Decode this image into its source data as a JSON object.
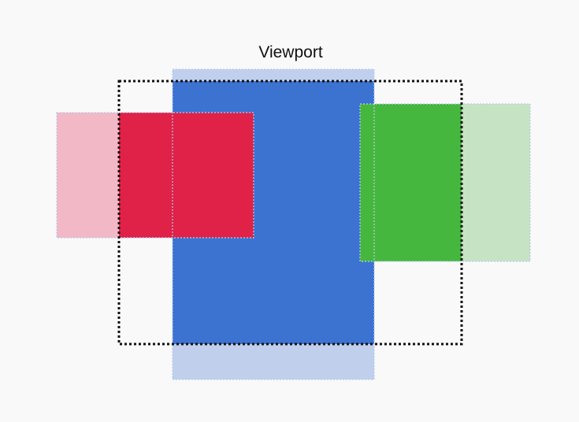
{
  "viewport": {
    "label": "Viewport",
    "border_color": "#111111"
  },
  "elements": [
    {
      "name": "red-element",
      "outside_color": "#f2b8c6",
      "inside_color": "#e02148"
    },
    {
      "name": "blue-element",
      "outside_color": "#c0d0ec",
      "inside_color": "#3c73d1"
    },
    {
      "name": "green-element",
      "outside_color": "#c6e4c3",
      "inside_color": "#46b73e"
    }
  ],
  "outline_color": "#b7cbee"
}
